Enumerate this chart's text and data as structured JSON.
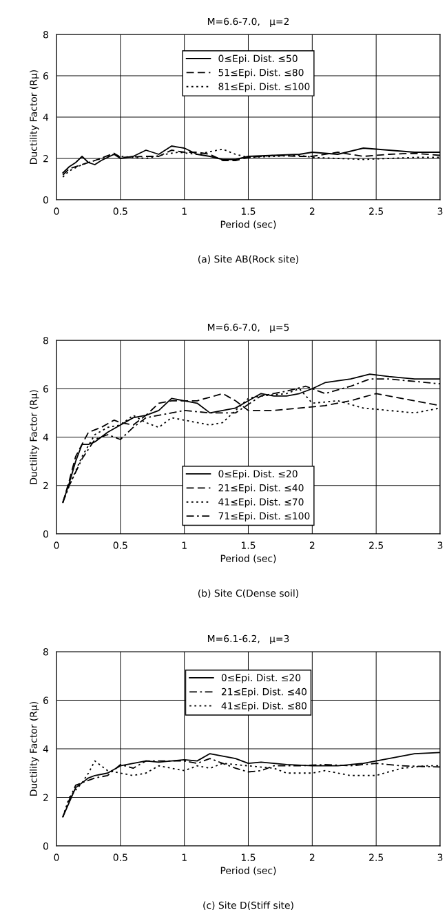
{
  "chart_data": [
    {
      "type": "line",
      "title": "M=6.6-7.0,   μ=2",
      "xlabel": "Period (sec)",
      "ylabel": "Ductility Factor (Rμ)",
      "annotations": [
        "(a) Site AB(Rock site)"
      ],
      "xlim": [
        0,
        3
      ],
      "xticks": [
        0,
        0.5,
        1,
        1.5,
        2,
        2.5,
        3
      ],
      "ylim": [
        0,
        8
      ],
      "yticks": [
        0,
        2,
        4,
        6,
        8
      ],
      "grid": true,
      "legend": "top",
      "series": [
        {
          "name": "0≤Epi. Dist. ≤50",
          "color": "#000000",
          "line_style": "solid",
          "x": [
            0.05,
            0.1,
            0.15,
            0.2,
            0.25,
            0.3,
            0.35,
            0.45,
            0.5,
            0.6,
            0.7,
            0.8,
            0.9,
            1.0,
            1.1,
            1.2,
            1.3,
            1.4,
            1.5,
            1.7,
            1.9,
            2.0,
            2.2,
            2.4,
            2.6,
            2.8,
            3.0
          ],
          "values": [
            1.3,
            1.6,
            1.8,
            2.1,
            1.8,
            1.7,
            1.9,
            2.2,
            2.0,
            2.1,
            2.4,
            2.2,
            2.6,
            2.5,
            2.2,
            2.1,
            1.95,
            1.95,
            2.1,
            2.15,
            2.2,
            2.3,
            2.2,
            2.5,
            2.4,
            2.3,
            2.3
          ]
        },
        {
          "name": "51≤Epi. Dist. ≤80",
          "color": "#000000",
          "line_style": "dashed",
          "x": [
            0.05,
            0.1,
            0.2,
            0.3,
            0.45,
            0.5,
            0.7,
            0.8,
            0.9,
            1.0,
            1.1,
            1.2,
            1.3,
            1.4,
            1.5,
            1.7,
            1.9,
            2.0,
            2.2,
            2.4,
            2.6,
            2.8,
            3.0
          ],
          "values": [
            1.2,
            1.5,
            1.7,
            1.9,
            2.25,
            2.05,
            2.1,
            2.1,
            2.4,
            2.3,
            2.3,
            2.2,
            1.9,
            1.9,
            2.05,
            2.15,
            2.1,
            2.1,
            2.3,
            2.1,
            2.2,
            2.25,
            2.15
          ]
        },
        {
          "name": "81≤Epi. Dist. ≤100",
          "color": "#000000",
          "line_style": "dotted",
          "x": [
            0.05,
            0.1,
            0.2,
            0.3,
            0.45,
            0.5,
            0.7,
            0.85,
            0.95,
            1.1,
            1.3,
            1.4,
            1.5,
            1.7,
            1.9,
            2.0,
            2.2,
            2.4,
            2.6,
            2.8,
            3.0
          ],
          "values": [
            1.1,
            1.4,
            1.7,
            1.9,
            2.2,
            2.1,
            2.0,
            2.2,
            2.3,
            2.2,
            2.45,
            2.2,
            2.05,
            2.1,
            2.15,
            2.05,
            2.0,
            1.95,
            2.0,
            2.05,
            2.05
          ]
        }
      ]
    },
    {
      "type": "line",
      "title": "M=6.6-7.0,   μ=5",
      "xlabel": "Period (sec)",
      "ylabel": "Ductility Factor (Rμ)",
      "annotations": [
        "(b) Site C(Dense soil)"
      ],
      "xlim": [
        0,
        3
      ],
      "xticks": [
        0,
        0.5,
        1,
        1.5,
        2,
        2.5,
        3
      ],
      "ylim": [
        0,
        8
      ],
      "yticks": [
        0,
        2,
        4,
        6,
        8
      ],
      "grid": true,
      "legend": "bottom",
      "series": [
        {
          "name": "0≤Epi. Dist. ≤20",
          "color": "#000000",
          "line_style": "solid",
          "x": [
            0.05,
            0.1,
            0.15,
            0.2,
            0.25,
            0.3,
            0.4,
            0.5,
            0.6,
            0.7,
            0.8,
            0.9,
            1.0,
            1.1,
            1.2,
            1.4,
            1.5,
            1.6,
            1.7,
            1.8,
            1.9,
            2.0,
            2.1,
            2.3,
            2.45,
            2.6,
            2.8,
            3.0
          ],
          "values": [
            1.3,
            2.1,
            3.0,
            3.7,
            3.7,
            3.8,
            4.2,
            4.5,
            4.8,
            4.9,
            5.1,
            5.6,
            5.5,
            5.4,
            5.0,
            5.2,
            5.5,
            5.8,
            5.7,
            5.7,
            5.8,
            6.0,
            6.25,
            6.4,
            6.6,
            6.5,
            6.4,
            6.4
          ]
        },
        {
          "name": "21≤Epi. Dist. ≤40",
          "color": "#000000",
          "line_style": "dashed",
          "x": [
            0.05,
            0.1,
            0.15,
            0.25,
            0.35,
            0.45,
            0.5,
            0.6,
            0.7,
            0.8,
            0.9,
            1.1,
            1.3,
            1.4,
            1.5,
            1.7,
            1.9,
            2.1,
            2.3,
            2.5,
            2.7,
            2.9,
            3.0
          ],
          "values": [
            1.3,
            2.2,
            3.2,
            4.2,
            4.4,
            4.7,
            4.6,
            4.5,
            4.9,
            5.4,
            5.5,
            5.5,
            5.8,
            5.5,
            5.1,
            5.1,
            5.2,
            5.3,
            5.5,
            5.8,
            5.6,
            5.4,
            5.3
          ]
        },
        {
          "name": "41≤Epi. Dist. ≤70",
          "color": "#000000",
          "line_style": "dotted",
          "x": [
            0.05,
            0.1,
            0.2,
            0.3,
            0.4,
            0.5,
            0.6,
            0.7,
            0.8,
            0.9,
            1.0,
            1.2,
            1.3,
            1.4,
            1.5,
            1.6,
            1.8,
            1.9,
            2.0,
            2.2,
            2.4,
            2.6,
            2.8,
            3.0
          ],
          "values": [
            1.3,
            2.0,
            3.2,
            4.1,
            4.4,
            4.5,
            4.9,
            4.6,
            4.4,
            4.8,
            4.7,
            4.5,
            4.6,
            5.1,
            5.6,
            5.7,
            5.8,
            6.0,
            5.4,
            5.5,
            5.2,
            5.1,
            5.0,
            5.2
          ]
        },
        {
          "name": "71≤Epi. Dist. ≤100",
          "color": "#000000",
          "line_style": "dashdot",
          "x": [
            0.05,
            0.1,
            0.2,
            0.3,
            0.4,
            0.5,
            0.6,
            0.7,
            0.8,
            0.9,
            1.0,
            1.2,
            1.4,
            1.6,
            1.8,
            1.95,
            2.1,
            2.3,
            2.45,
            2.6,
            2.8,
            3.0
          ],
          "values": [
            1.3,
            2.0,
            3.1,
            3.9,
            4.1,
            3.9,
            4.4,
            4.8,
            4.9,
            5.0,
            5.1,
            5.0,
            5.0,
            5.7,
            5.9,
            6.1,
            5.8,
            6.1,
            6.4,
            6.4,
            6.3,
            6.2
          ]
        }
      ]
    },
    {
      "type": "line",
      "title": "M=6.1-6.2,   μ=3",
      "xlabel": "Period (sec)",
      "ylabel": "Ductility Factor (Rμ)",
      "annotations": [
        "(c) Site D(Stiff site)"
      ],
      "xlim": [
        0,
        3
      ],
      "xticks": [
        0,
        0.5,
        1,
        1.5,
        2,
        2.5,
        3
      ],
      "ylim": [
        0,
        8
      ],
      "yticks": [
        0,
        2,
        4,
        6,
        8
      ],
      "grid": true,
      "legend": "top",
      "series": [
        {
          "name": "0≤Epi. Dist. ≤20",
          "color": "#000000",
          "line_style": "solid",
          "x": [
            0.05,
            0.1,
            0.15,
            0.2,
            0.25,
            0.3,
            0.4,
            0.5,
            0.6,
            0.7,
            0.8,
            0.9,
            1.0,
            1.1,
            1.2,
            1.3,
            1.4,
            1.5,
            1.6,
            1.8,
            2.0,
            2.2,
            2.4,
            2.6,
            2.8,
            3.0
          ],
          "values": [
            1.2,
            1.8,
            2.4,
            2.6,
            2.8,
            2.9,
            3.0,
            3.3,
            3.4,
            3.5,
            3.45,
            3.5,
            3.55,
            3.5,
            3.8,
            3.7,
            3.6,
            3.4,
            3.45,
            3.35,
            3.3,
            3.3,
            3.4,
            3.6,
            3.8,
            3.85
          ]
        },
        {
          "name": "21≤Epi. Dist. ≤40",
          "color": "#000000",
          "line_style": "dashdot",
          "x": [
            0.05,
            0.1,
            0.15,
            0.2,
            0.3,
            0.4,
            0.5,
            0.6,
            0.7,
            0.9,
            1.0,
            1.1,
            1.2,
            1.3,
            1.4,
            1.5,
            1.6,
            1.7,
            1.9,
            2.1,
            2.3,
            2.5,
            2.7,
            3.0
          ],
          "values": [
            1.2,
            1.9,
            2.5,
            2.6,
            2.8,
            2.9,
            3.35,
            3.2,
            3.5,
            3.5,
            3.5,
            3.4,
            3.6,
            3.4,
            3.2,
            3.05,
            3.1,
            3.3,
            3.3,
            3.35,
            3.3,
            3.4,
            3.3,
            3.25
          ]
        },
        {
          "name": "41≤Epi. Dist. ≤80",
          "color": "#000000",
          "line_style": "dotted",
          "x": [
            0.05,
            0.1,
            0.2,
            0.25,
            0.3,
            0.4,
            0.5,
            0.6,
            0.7,
            0.8,
            0.9,
            1.0,
            1.1,
            1.2,
            1.3,
            1.5,
            1.7,
            1.8,
            2.0,
            2.1,
            2.3,
            2.5,
            2.7,
            2.9,
            3.0
          ],
          "values": [
            1.2,
            2.0,
            2.6,
            3.0,
            3.5,
            3.1,
            3.0,
            2.9,
            3.0,
            3.3,
            3.2,
            3.1,
            3.3,
            3.2,
            3.4,
            3.3,
            3.2,
            3.0,
            3.0,
            3.1,
            2.9,
            2.9,
            3.2,
            3.3,
            3.3
          ]
        }
      ]
    }
  ]
}
